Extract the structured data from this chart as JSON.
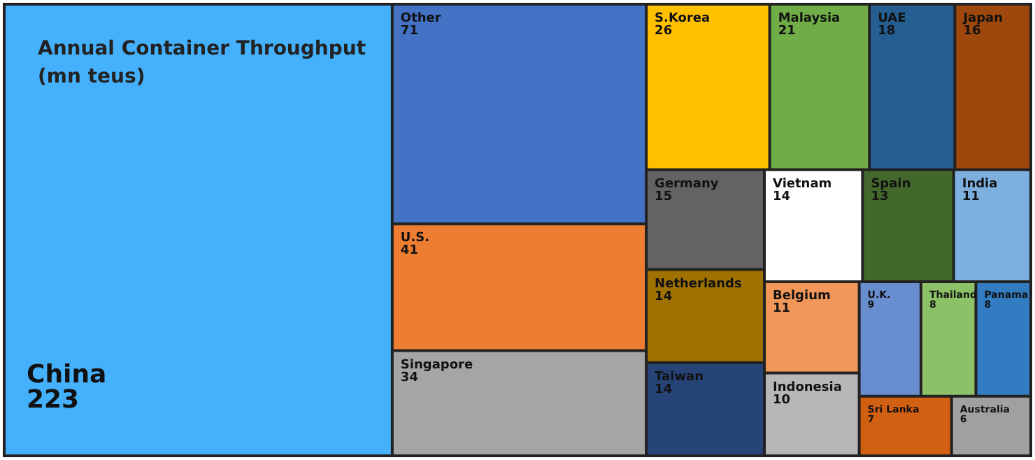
{
  "chart_data": {
    "type": "other",
    "title": "Annual Container Throughput\n(mn teus)",
    "categories": [
      "China",
      "Other",
      "U.S.",
      "Singapore",
      "S.Korea",
      "Malaysia",
      "UAE",
      "Japan",
      "Germany",
      "Netherlands",
      "Taiwan",
      "Vietnam",
      "Spain",
      "India",
      "Belgium",
      "Indonesia",
      "U.K.",
      "Thailand",
      "Panama",
      "Sri Lanka",
      "Australia"
    ],
    "values": [
      223,
      71,
      41,
      34,
      26,
      21,
      18,
      16,
      15,
      14,
      14,
      14,
      13,
      11,
      11,
      10,
      9,
      8,
      8,
      7,
      6
    ],
    "data_labels": true,
    "colors": [
      "#45b0fb",
      "#4472c4",
      "#ed7d31",
      "#a5a5a5",
      "#ffc000",
      "#70ad47",
      "#255e91",
      "#9e480e",
      "#636363",
      "#9e7100",
      "#264478",
      "#ffffff",
      "#43682b",
      "#7cafdd",
      "#f1975a",
      "#b7b7b7",
      "#698ed0",
      "#8cc168",
      "#327dc2",
      "#d26012",
      "#a0a0a0"
    ]
  }
}
